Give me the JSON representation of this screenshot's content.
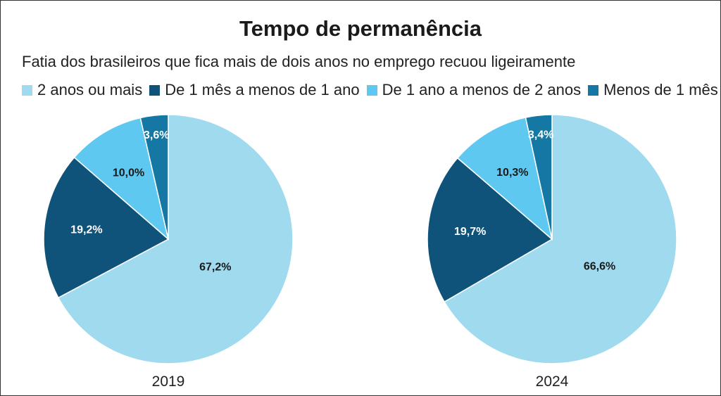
{
  "chart_data": {
    "type": "pie",
    "title": "Tempo de permanência",
    "subtitle": "Fatia dos brasileiros que fica mais de dois anos no emprego recuou ligeiramente",
    "legend": [
      {
        "label": "2 anos ou mais",
        "color": "#9fdaee"
      },
      {
        "label": "De 1 mês a menos de 1 ano",
        "color": "#0f537a"
      },
      {
        "label": "De 1 ano a menos de 2 anos",
        "color": "#5ec8f0"
      },
      {
        "label": "Menos de 1 mês",
        "color": "#1577a4"
      }
    ],
    "pies": [
      {
        "year": "2019",
        "slices": [
          {
            "label": "2 anos ou mais",
            "value": 67.2,
            "text": "67,2%"
          },
          {
            "label": "De 1 mês a menos de 1 ano",
            "value": 19.2,
            "text": "19,2%"
          },
          {
            "label": "De 1 ano a menos de 2 anos",
            "value": 10.0,
            "text": "10,0%"
          },
          {
            "label": "Menos de 1 mês",
            "value": 3.6,
            "text": "3,6%"
          }
        ]
      },
      {
        "year": "2024",
        "slices": [
          {
            "label": "2 anos ou mais",
            "value": 66.6,
            "text": "66,6%"
          },
          {
            "label": "De 1 mês a menos de 1 ano",
            "value": 19.7,
            "text": "19,7%"
          },
          {
            "label": "De 1 ano a menos de 2 anos",
            "value": 10.3,
            "text": "10,3%"
          },
          {
            "label": "Menos de 1 mês",
            "value": 3.4,
            "text": "3,4%"
          }
        ]
      }
    ],
    "label_colors": [
      "#1a1a1a",
      "#ffffff",
      "#1a1a1a",
      "#ffffff"
    ]
  }
}
